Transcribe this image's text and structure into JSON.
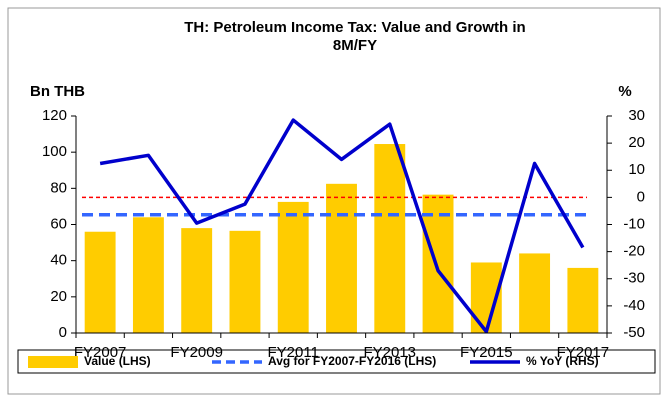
{
  "chart_data": {
    "type": "bar_line",
    "title": [
      "TH: Petroleum Income Tax: Value and Growth in",
      "8M/FY"
    ],
    "y_label": "Bn THB",
    "y2_label": "%",
    "categories": [
      "FY2007",
      null,
      "FY2009",
      null,
      "FY2011",
      null,
      "FY2013",
      null,
      "FY2015",
      null,
      "FY2017"
    ],
    "series": [
      {
        "name": "Value (LHS)",
        "kind": "bar",
        "color": "#ffcc00",
        "values": [
          56,
          64,
          58,
          56.5,
          72.5,
          82.5,
          104.5,
          76.5,
          39,
          44,
          36
        ]
      },
      {
        "name": "Avg for FY2007-FY2016 (LHS)",
        "kind": "avg",
        "color": "#3366ff",
        "value": 65.4
      },
      {
        "name": "% YoY (RHS)",
        "kind": "line",
        "axis": "y2",
        "color": "#0000cc",
        "values": [
          12.5,
          15.5,
          -9.5,
          -2.5,
          28.5,
          14,
          27,
          -27,
          -49.5,
          12.5,
          -18.5
        ]
      }
    ],
    "reference_lines": [
      {
        "value": 0,
        "axis": "y2",
        "color": "#ff0000"
      }
    ],
    "ylim": [
      0,
      120
    ],
    "yticks": [
      0,
      20,
      40,
      60,
      80,
      100,
      120
    ],
    "y2lim": [
      -50,
      30
    ],
    "y2ticks": [
      -50,
      -40,
      -30,
      -20,
      -10,
      0,
      10,
      20,
      30
    ]
  }
}
